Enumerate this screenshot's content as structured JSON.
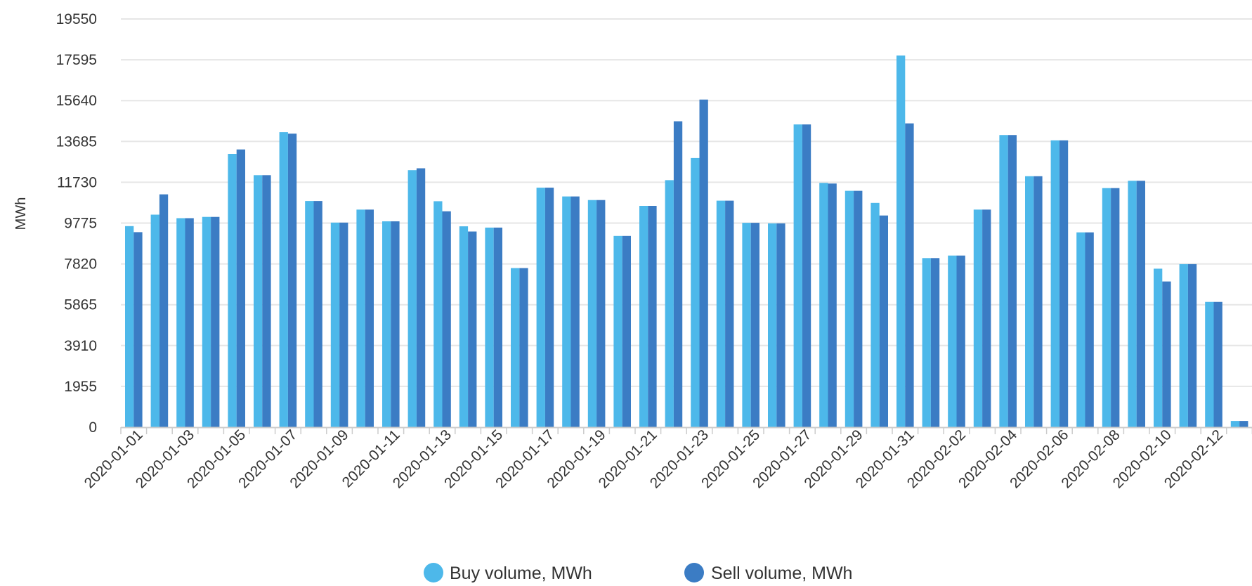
{
  "chart_data": {
    "type": "bar",
    "title": "",
    "xlabel": "",
    "ylabel": "MWh",
    "ylim": [
      0,
      19550
    ],
    "yticks": [
      0,
      1955,
      3910,
      5865,
      7820,
      9775,
      11730,
      13685,
      15640,
      17595,
      19550
    ],
    "grid": true,
    "legend_position": "bottom-center",
    "categories": [
      "2020-01-01",
      "2020-01-02",
      "2020-01-03",
      "2020-01-04",
      "2020-01-05",
      "2020-01-06",
      "2020-01-07",
      "2020-01-08",
      "2020-01-09",
      "2020-01-10",
      "2020-01-11",
      "2020-01-12",
      "2020-01-13",
      "2020-01-14",
      "2020-01-15",
      "2020-01-16",
      "2020-01-17",
      "2020-01-18",
      "2020-01-19",
      "2020-01-20",
      "2020-01-21",
      "2020-01-22",
      "2020-01-23",
      "2020-01-24",
      "2020-01-25",
      "2020-01-26",
      "2020-01-27",
      "2020-01-28",
      "2020-01-29",
      "2020-01-30",
      "2020-01-31",
      "2020-02-01",
      "2020-02-02",
      "2020-02-03",
      "2020-02-04",
      "2020-02-05",
      "2020-02-06",
      "2020-02-07",
      "2020-02-08",
      "2020-02-09",
      "2020-02-10",
      "2020-02-11",
      "2020-02-12",
      "2020-02-13"
    ],
    "tick_labels": [
      "2020-01-01",
      "2020-01-03",
      "2020-01-05",
      "2020-01-07",
      "2020-01-09",
      "2020-01-11",
      "2020-01-13",
      "2020-01-15",
      "2020-01-17",
      "2020-01-19",
      "2020-01-21",
      "2020-01-23",
      "2020-01-25",
      "2020-01-27",
      "2020-01-29",
      "2020-01-31",
      "2020-02-02",
      "2020-02-04",
      "2020-02-06",
      "2020-02-08",
      "2020-02-10",
      "2020-02-12"
    ],
    "series": [
      {
        "name": "Buy volume, MWh",
        "color": "#4db8ea",
        "values": [
          9630,
          10180,
          10010,
          10070,
          13090,
          12070,
          14130,
          10830,
          9800,
          10420,
          9860,
          12310,
          10820,
          9620,
          9560,
          7620,
          11470,
          11050,
          10880,
          9160,
          10600,
          11830,
          12890,
          10850,
          9790,
          9760,
          14500,
          11700,
          11320,
          10740,
          17800,
          8100,
          8220,
          10420,
          13990,
          12020,
          13740,
          9330,
          11450,
          11800,
          7590,
          7810,
          6000,
          300
        ]
      },
      {
        "name": "Sell volume, MWh",
        "color": "#3b7cc4",
        "values": [
          9340,
          11150,
          10010,
          10070,
          13300,
          12070,
          14060,
          10830,
          9800,
          10420,
          9860,
          12400,
          10340,
          9370,
          9560,
          7620,
          11470,
          11050,
          10880,
          9160,
          10600,
          14650,
          15690,
          10850,
          9790,
          9760,
          14500,
          11670,
          11320,
          10140,
          14550,
          8100,
          8220,
          10420,
          13990,
          12020,
          13740,
          9330,
          11450,
          11800,
          6980,
          7810,
          6000,
          300
        ]
      }
    ]
  }
}
